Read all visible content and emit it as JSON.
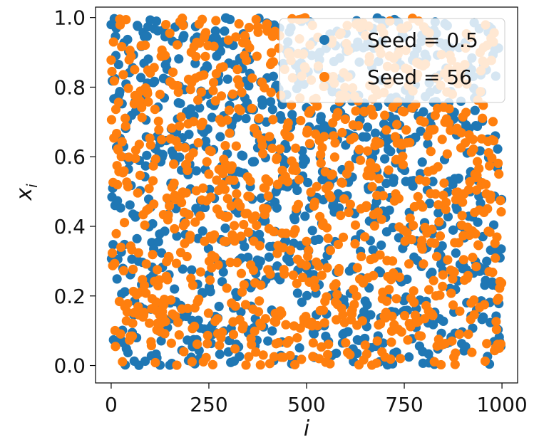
{
  "chart_data": {
    "type": "scatter",
    "xlabel": "i",
    "ylabel_base": "x",
    "ylabel_sub": "i",
    "xlim": [
      -40,
      1040
    ],
    "ylim": [
      -0.05,
      1.03
    ],
    "x_ticks": [
      0,
      250,
      500,
      750,
      1000
    ],
    "x_tick_labels": [
      "0",
      "250",
      "500",
      "750",
      "1000"
    ],
    "y_ticks": [
      0.0,
      0.2,
      0.4,
      0.6,
      0.8,
      1.0
    ],
    "y_tick_labels": [
      "0.0",
      "0.2",
      "0.4",
      "0.6",
      "0.8",
      "1.0"
    ],
    "grid": false,
    "legend_position": "top-right",
    "n_points_per_series": 1000,
    "series": [
      {
        "name": "Seed = 0.5",
        "color": "#1f77b4",
        "note_values": "approximately uniform random values in [0,1] for i = 0..999 (pseudo-random sequence)"
      },
      {
        "name": "Seed = 56",
        "color": "#ff7f0e",
        "note_values": "approximately uniform random values in [0,1] for i = 0..999 (pseudo-random sequence)"
      }
    ]
  }
}
